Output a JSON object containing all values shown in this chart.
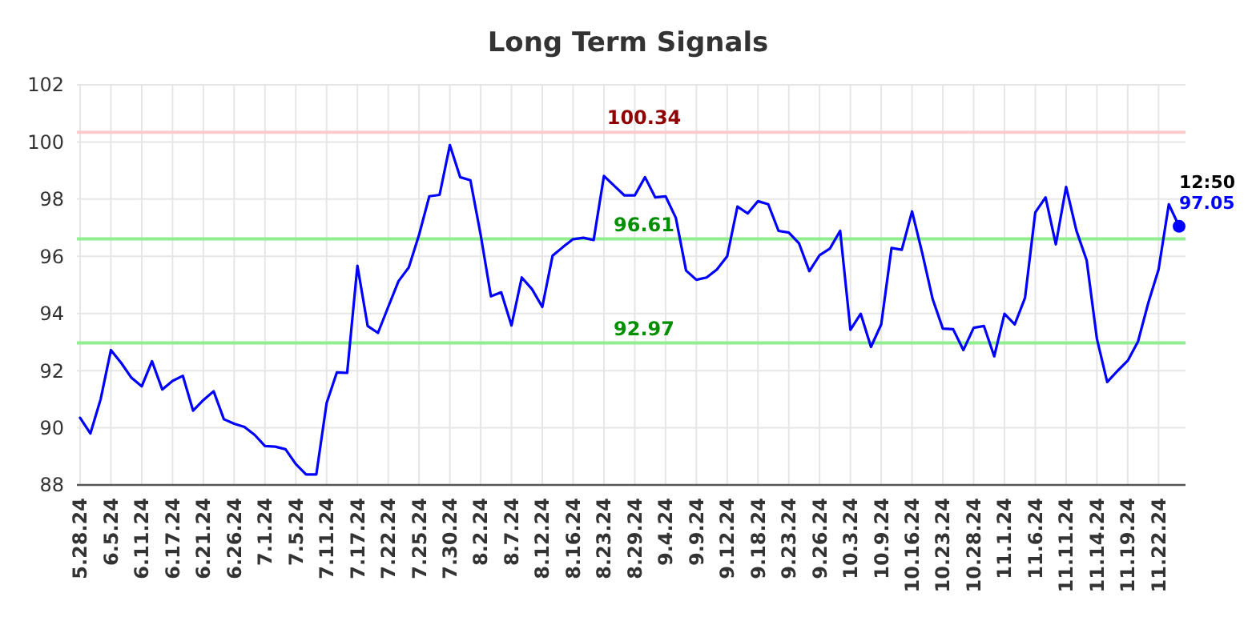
{
  "chart_data": {
    "type": "line",
    "title": "Long Term Signals",
    "categories": [
      "5.28.24",
      null,
      null,
      "6.5.24",
      null,
      null,
      "6.11.24",
      null,
      null,
      "6.17.24",
      null,
      null,
      "6.21.24",
      null,
      null,
      "6.26.24",
      null,
      null,
      "7.1.24",
      null,
      null,
      "7.5.24",
      null,
      null,
      "7.11.24",
      null,
      null,
      "7.17.24",
      null,
      null,
      "7.22.24",
      null,
      null,
      "7.25.24",
      null,
      null,
      "7.30.24",
      null,
      null,
      "8.2.24",
      null,
      null,
      "8.7.24",
      null,
      null,
      "8.12.24",
      null,
      null,
      "8.16.24",
      null,
      null,
      "8.23.24",
      null,
      null,
      "8.29.24",
      null,
      null,
      "9.4.24",
      null,
      null,
      "9.9.24",
      null,
      null,
      "9.12.24",
      null,
      null,
      "9.18.24",
      null,
      null,
      "9.23.24",
      null,
      null,
      "9.26.24",
      null,
      null,
      "10.3.24",
      null,
      null,
      "10.9.24",
      null,
      null,
      "10.16.24",
      null,
      null,
      "10.23.24",
      null,
      null,
      "10.28.24",
      null,
      null,
      "11.1.24",
      null,
      null,
      "11.6.24",
      null,
      null,
      "11.11.24",
      null,
      null,
      "11.14.24",
      null,
      null,
      "11.19.24",
      null,
      null,
      "11.22.24",
      null,
      null
    ],
    "series": [
      {
        "color": "#0000ff",
        "values": [
          90.35,
          89.8,
          91.0,
          92.72,
          92.27,
          91.75,
          91.45,
          92.33,
          91.34,
          91.64,
          91.82,
          90.6,
          90.97,
          91.28,
          90.3,
          90.14,
          90.03,
          89.75,
          89.36,
          89.34,
          89.25,
          88.73,
          88.37,
          88.37,
          90.86,
          91.94,
          91.92,
          95.67,
          93.56,
          93.32,
          94.23,
          95.13,
          95.61,
          96.75,
          98.1,
          98.15,
          99.89,
          98.77,
          98.66,
          96.75,
          94.6,
          94.74,
          93.58,
          95.26,
          94.85,
          94.23,
          96.02,
          96.32,
          96.6,
          96.65,
          96.57,
          98.81,
          98.47,
          98.13,
          98.13,
          98.77,
          98.06,
          98.1,
          97.35,
          95.5,
          95.18,
          95.26,
          95.54,
          96.0,
          97.74,
          97.5,
          97.93,
          97.82,
          96.89,
          96.83,
          96.45,
          95.48,
          96.04,
          96.27,
          96.89,
          93.43,
          93.99,
          92.83,
          93.62,
          96.29,
          96.23,
          97.57,
          96.1,
          94.51,
          93.47,
          93.45,
          92.72,
          93.5,
          93.56,
          92.5,
          93.99,
          93.62,
          94.55,
          97.54,
          98.06,
          96.42,
          98.43,
          96.9,
          95.86,
          93.11,
          91.6,
          91.99,
          92.35,
          93.02,
          94.37,
          95.54,
          97.82,
          97.05
        ]
      },
      {
        "type": "scatter",
        "color": "#0000ff",
        "marker": "circle",
        "values": [
          null,
          null,
          null,
          null,
          null,
          null,
          null,
          null,
          null,
          null,
          null,
          null,
          null,
          null,
          null,
          null,
          null,
          null,
          null,
          null,
          null,
          null,
          null,
          null,
          null,
          null,
          null,
          null,
          null,
          null,
          null,
          null,
          null,
          null,
          null,
          null,
          null,
          null,
          null,
          null,
          null,
          null,
          null,
          null,
          null,
          null,
          null,
          null,
          null,
          null,
          null,
          null,
          null,
          null,
          null,
          null,
          null,
          null,
          null,
          null,
          null,
          null,
          null,
          null,
          null,
          null,
          null,
          null,
          null,
          null,
          null,
          null,
          null,
          null,
          null,
          null,
          null,
          null,
          null,
          null,
          null,
          null,
          null,
          null,
          null,
          null,
          null,
          null,
          null,
          null,
          null,
          null,
          null,
          null,
          null,
          null,
          null,
          null,
          null,
          null,
          null,
          null,
          null,
          null,
          null,
          null,
          null,
          97.05
        ]
      }
    ],
    "ylim": [
      88,
      102
    ],
    "yticks": [
      88,
      90,
      92,
      94,
      96,
      98,
      100,
      102
    ],
    "grid": true,
    "ref_lines": [
      {
        "axis": "y",
        "value": 100.34,
        "label": "100.34",
        "color": "#ffcccc"
      },
      {
        "axis": "y",
        "value": 96.61,
        "label": "96.61",
        "color": "#90ee90"
      },
      {
        "axis": "y",
        "value": 92.97,
        "label": "92.97",
        "color": "#90ee90"
      }
    ],
    "annotations": [
      "12:50",
      "97.05"
    ]
  }
}
